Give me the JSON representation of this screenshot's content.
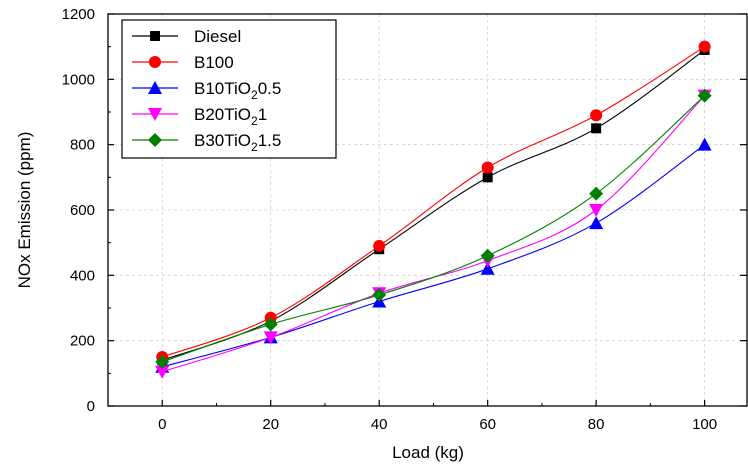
{
  "chart_data": {
    "type": "line",
    "xlabel": "Load (kg)",
    "ylabel": "NOx Emission (ppm)",
    "xlim": [
      -10,
      108
    ],
    "ylim": [
      0,
      1200
    ],
    "xticks": [
      0,
      20,
      40,
      60,
      80,
      100
    ],
    "yticks": [
      0,
      200,
      400,
      600,
      800,
      1000,
      1200
    ],
    "grid": true,
    "legend_position": "top-left",
    "series": [
      {
        "name": "Diesel",
        "marker": "square",
        "color": "#000000",
        "x": [
          0,
          20,
          40,
          60,
          80,
          100
        ],
        "values": [
          140,
          260,
          480,
          700,
          850,
          1090
        ]
      },
      {
        "name": "B100",
        "marker": "circle",
        "color": "#ff0000",
        "x": [
          0,
          20,
          40,
          60,
          80,
          100
        ],
        "values": [
          150,
          270,
          490,
          730,
          890,
          1100
        ]
      },
      {
        "name": "B10TiO20.5",
        "name_parts": {
          "base": "B10TiO",
          "sub": "2",
          "tail": "0.5"
        },
        "marker": "triangle-up",
        "color": "#0000ff",
        "x": [
          0,
          20,
          40,
          60,
          80,
          100
        ],
        "values": [
          120,
          210,
          320,
          420,
          560,
          800
        ]
      },
      {
        "name": "B20TiO21",
        "name_parts": {
          "base": "B20TiO",
          "sub": "2",
          "tail": "1"
        },
        "marker": "triangle-down",
        "color": "#ff00ff",
        "x": [
          0,
          20,
          40,
          60,
          80,
          100
        ],
        "values": [
          105,
          210,
          345,
          445,
          600,
          950
        ]
      },
      {
        "name": "B30TiO21.5",
        "name_parts": {
          "base": "B30TiO",
          "sub": "2",
          "tail": "1.5"
        },
        "marker": "diamond",
        "color": "#008000",
        "x": [
          0,
          20,
          40,
          60,
          80,
          100
        ],
        "values": [
          135,
          250,
          340,
          460,
          650,
          950
        ]
      }
    ]
  }
}
